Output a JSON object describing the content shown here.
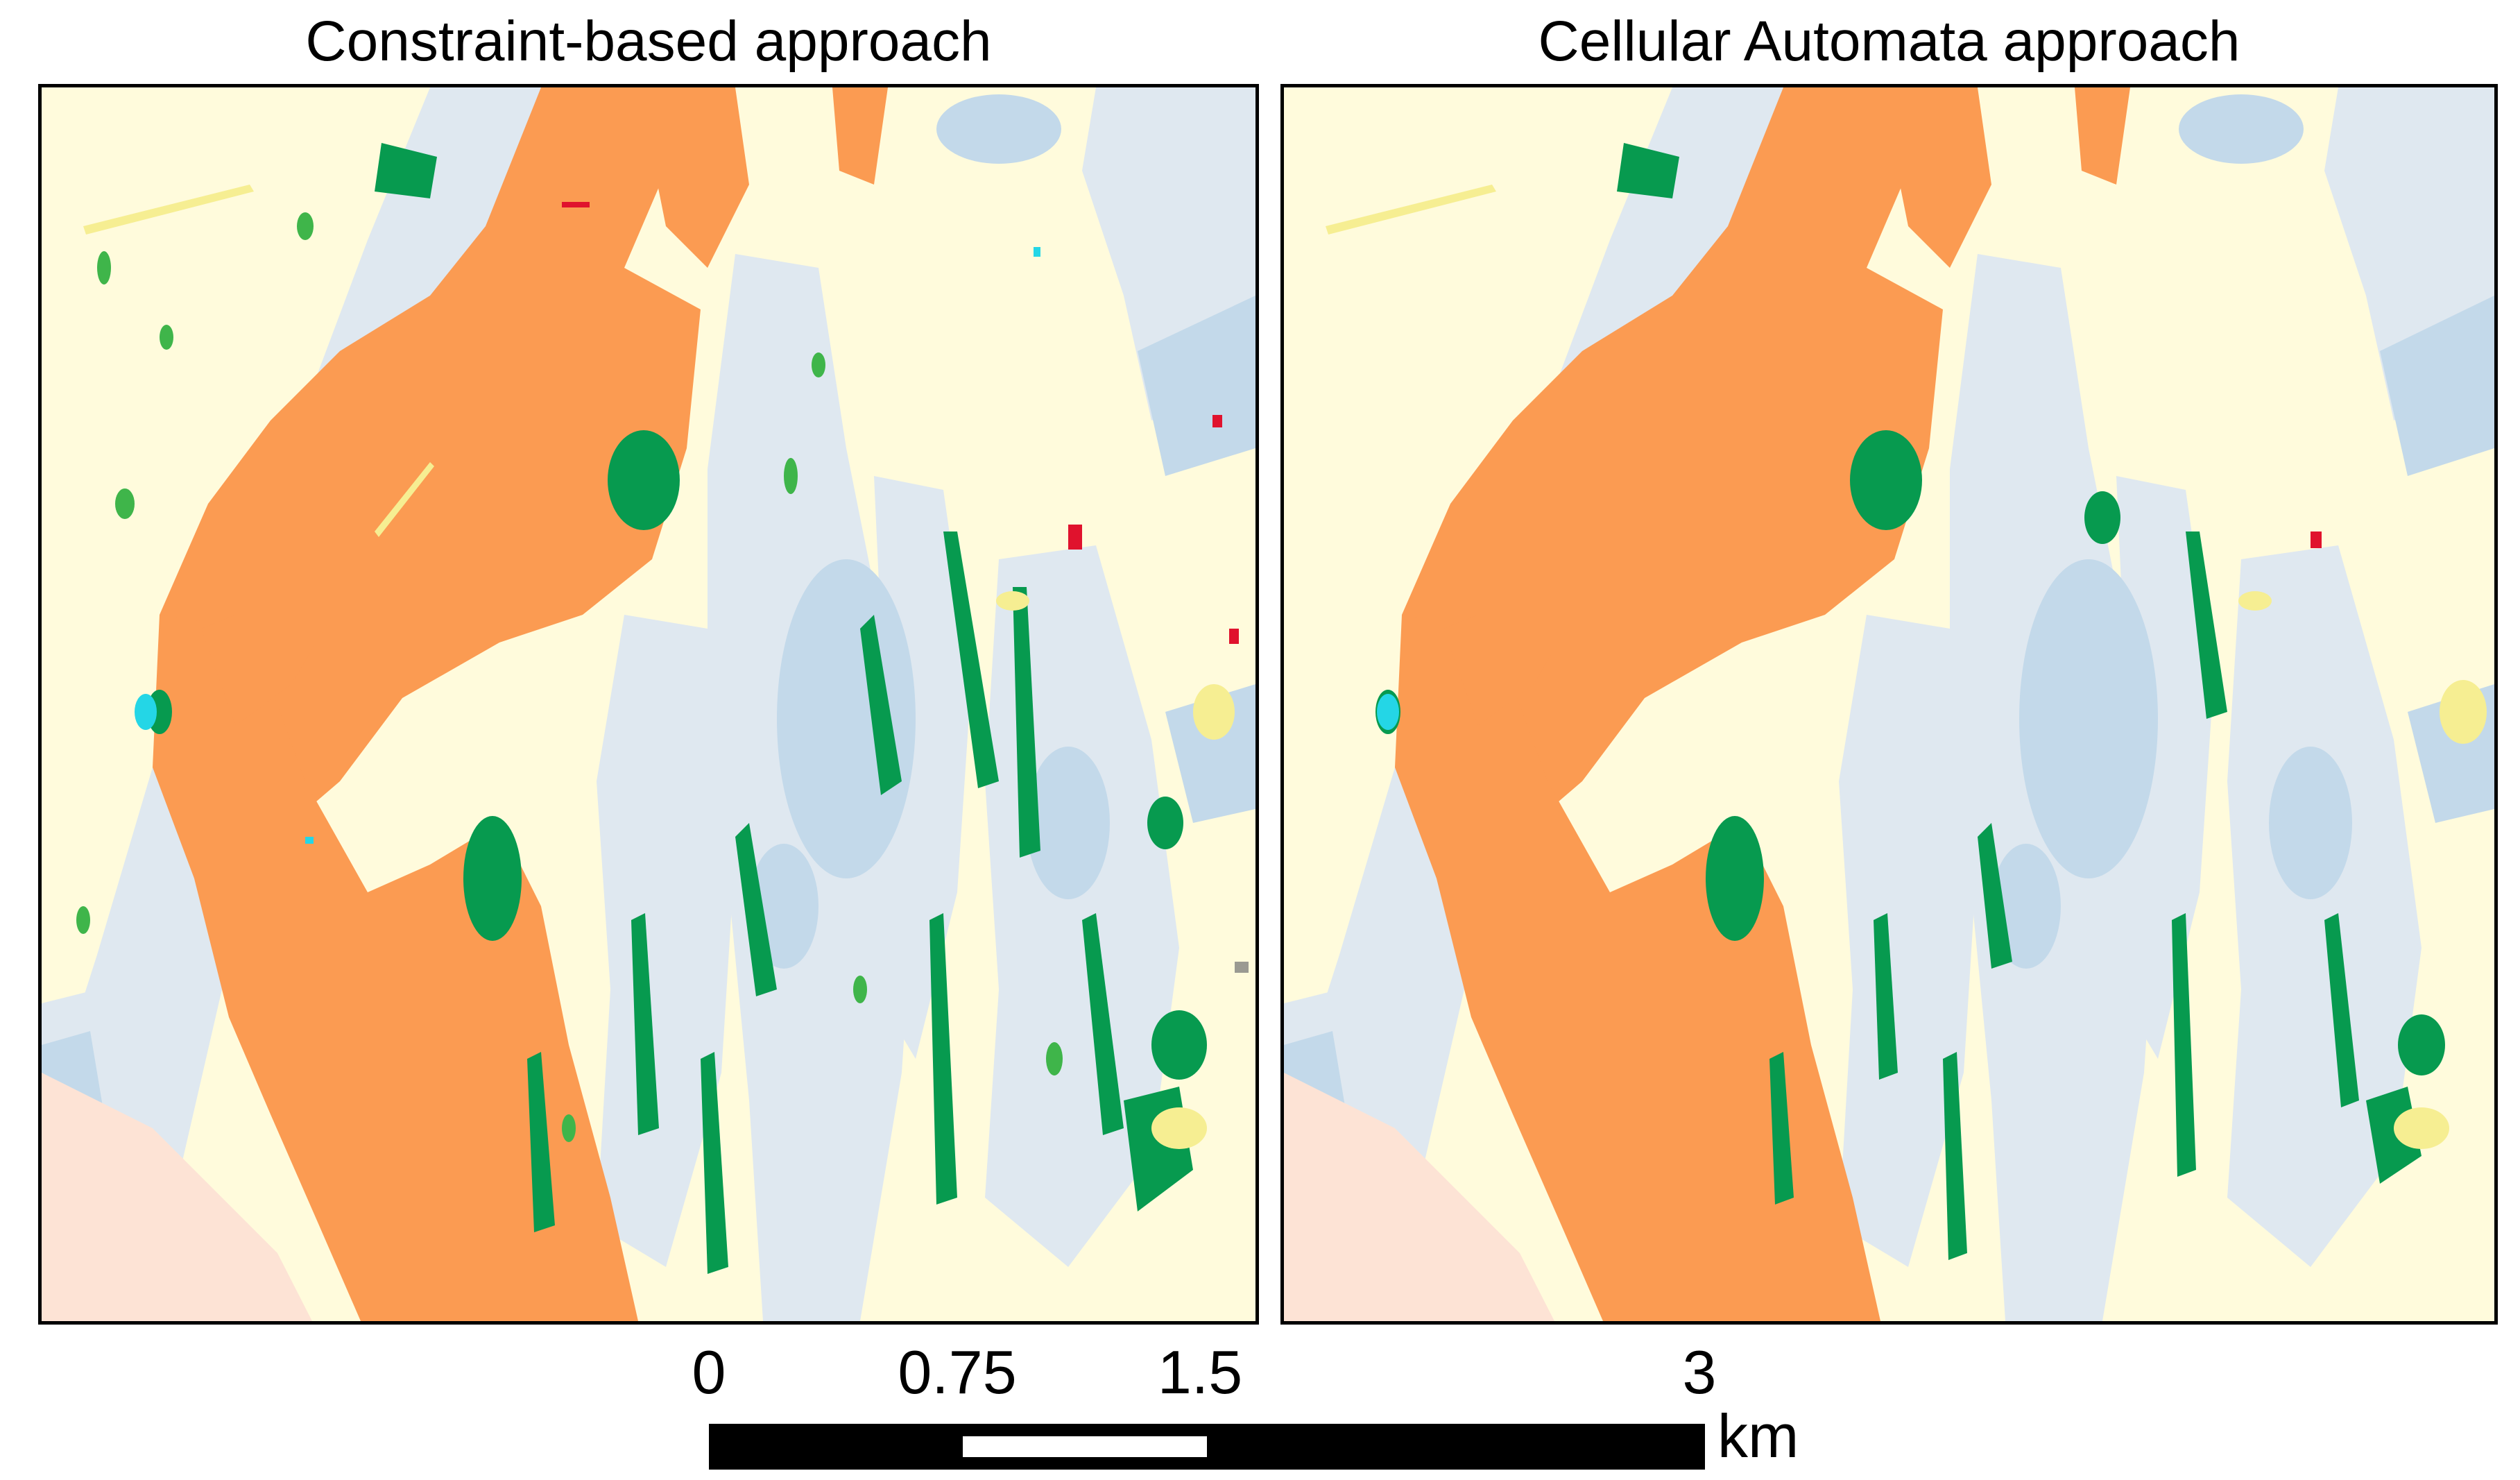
{
  "panels": {
    "left": {
      "title": "Constraint-based approach"
    },
    "right": {
      "title": "Cellular Automata approach"
    }
  },
  "scale_bar": {
    "ticks": [
      "0",
      "0.75",
      "1.5",
      "3"
    ],
    "unit": "km"
  },
  "colors": {
    "background": "#fffbdc",
    "pale_blue": "#dfe8f0",
    "light_blue": "#c3d9ea",
    "orange": "#fb9b52",
    "green": "#079a4f",
    "light_green": "#3fb54a",
    "pale_yellow": "#f6ee92",
    "pink": "#fde3d5",
    "cyan": "#24d6e6",
    "red": "#e0122d",
    "grey": "#9a9a92"
  }
}
